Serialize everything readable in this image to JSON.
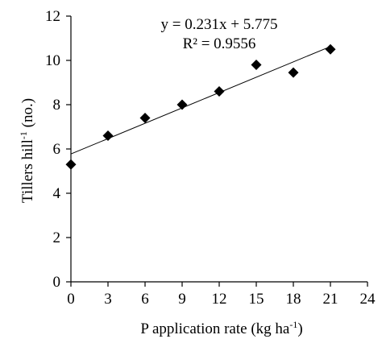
{
  "chart_data": {
    "type": "scatter",
    "x": [
      0,
      3,
      6,
      9,
      12,
      15,
      18,
      21
    ],
    "y": [
      5.3,
      6.6,
      7.4,
      8.0,
      8.6,
      9.8,
      9.45,
      10.5
    ],
    "trendline": {
      "slope": 0.231,
      "intercept": 5.775,
      "x_range": [
        0,
        21
      ]
    },
    "equation": "y = 0.231x + 5.775",
    "r_squared": "R² = 0.9556",
    "xlabel_main": "P application  rate (kg ha",
    "xlabel_sup": "-1",
    "xlabel_end": ")",
    "ylabel_main": "Tillers  hill",
    "ylabel_sup": "-1",
    "ylabel_end": " (no.)",
    "xlim": [
      0,
      24
    ],
    "ylim": [
      0,
      12
    ],
    "xticks": [
      "0",
      "3",
      "6",
      "9",
      "12",
      "15",
      "18",
      "21",
      "24"
    ],
    "yticks": [
      "0",
      "2",
      "4",
      "6",
      "8",
      "10",
      "12"
    ],
    "grid": false,
    "marker": "diamond",
    "colors": {
      "marker": "#000000",
      "line": "#000000",
      "axis": "#000000"
    }
  }
}
